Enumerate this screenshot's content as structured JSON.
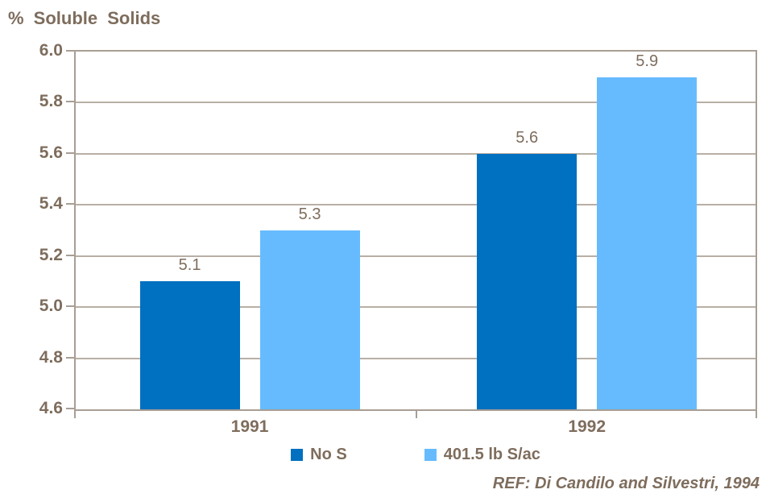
{
  "title": "% Soluble Solids",
  "footer": {
    "ref": "REF: Di Candilo and Silvestri, 1994"
  },
  "colors": {
    "text": "#7E6D5D",
    "axis": "#A89E94",
    "grid": "#B9AFA5",
    "series1": "#0070C0",
    "series2": "#66BBFF",
    "background": "#FFFFFF"
  },
  "chart_data": {
    "type": "bar",
    "title": "% Soluble Solids",
    "categories": [
      "1991",
      "1992"
    ],
    "series": [
      {
        "name": "No S",
        "values": [
          5.1,
          5.6
        ],
        "color": "#0070C0"
      },
      {
        "name": "401.5 lb S/ac",
        "values": [
          5.3,
          5.9
        ],
        "color": "#66BBFF"
      }
    ],
    "data_labels": [
      [
        "5.1",
        "5.6"
      ],
      [
        "5.3",
        "5.9"
      ]
    ],
    "xlabel": "",
    "ylabel": "% Soluble Solids",
    "ylim": [
      4.6,
      6.0
    ],
    "ytick_step": 0.2,
    "ytick_labels": [
      "6.0",
      "5.8",
      "5.6",
      "5.4",
      "5.2",
      "5.0",
      "4.8",
      "4.6"
    ],
    "grid": true,
    "legend_position": "bottom",
    "annotation": "REF: Di Candilo and Silvestri, 1994"
  }
}
